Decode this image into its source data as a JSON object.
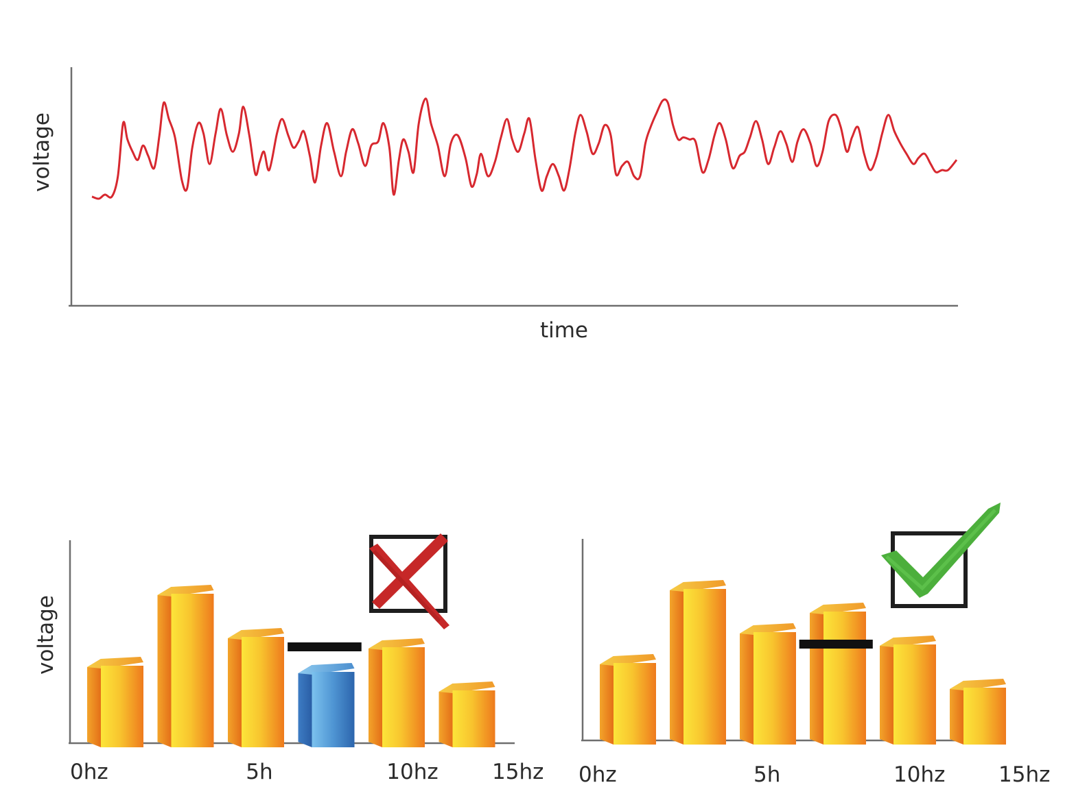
{
  "chart_data": [
    {
      "type": "line",
      "xlabel": "time",
      "ylabel": "voltage",
      "grid": false,
      "y_range": [
        0,
        100
      ],
      "x_range": [
        0,
        100
      ],
      "series": [
        {
          "color": "#d7282f",
          "points": [
            [
              0,
              42
            ],
            [
              0.8,
              41
            ],
            [
              1.5,
              43
            ],
            [
              2.3,
              42
            ],
            [
              3,
              52
            ],
            [
              3.6,
              78
            ],
            [
              4.1,
              70
            ],
            [
              4.7,
              64
            ],
            [
              5.3,
              60
            ],
            [
              5.9,
              67
            ],
            [
              6.5,
              62
            ],
            [
              7.2,
              56
            ],
            [
              7.8,
              72
            ],
            [
              8.3,
              88
            ],
            [
              8.9,
              80
            ],
            [
              9.6,
              71
            ],
            [
              10.4,
              50
            ],
            [
              11,
              46
            ],
            [
              11.6,
              66
            ],
            [
              12.3,
              78
            ],
            [
              12.9,
              73
            ],
            [
              13.6,
              58
            ],
            [
              14.3,
              73
            ],
            [
              14.9,
              85
            ],
            [
              15.6,
              72
            ],
            [
              16.3,
              64
            ],
            [
              17,
              73
            ],
            [
              17.5,
              86
            ],
            [
              18.2,
              72
            ],
            [
              18.9,
              53
            ],
            [
              19.4,
              59
            ],
            [
              19.9,
              64
            ],
            [
              20.5,
              55
            ],
            [
              21.4,
              73
            ],
            [
              22,
              80
            ],
            [
              22.7,
              72
            ],
            [
              23.3,
              66
            ],
            [
              23.9,
              69
            ],
            [
              24.5,
              74
            ],
            [
              25.2,
              62
            ],
            [
              25.8,
              49
            ],
            [
              26.5,
              67
            ],
            [
              27.2,
              78
            ],
            [
              28,
              64
            ],
            [
              28.8,
              52
            ],
            [
              29.4,
              64
            ],
            [
              30.1,
              75
            ],
            [
              30.8,
              68
            ],
            [
              31.6,
              57
            ],
            [
              32.3,
              67
            ],
            [
              33.1,
              69
            ],
            [
              33.7,
              78
            ],
            [
              34.4,
              66
            ],
            [
              34.9,
              43
            ],
            [
              35.5,
              60
            ],
            [
              36,
              70
            ],
            [
              36.6,
              64
            ],
            [
              37.2,
              54
            ],
            [
              37.8,
              78
            ],
            [
              38.6,
              90
            ],
            [
              39.2,
              78
            ],
            [
              40,
              67
            ],
            [
              40.8,
              52
            ],
            [
              41.5,
              68
            ],
            [
              42.3,
              72
            ],
            [
              43.2,
              61
            ],
            [
              43.9,
              47
            ],
            [
              44.5,
              53
            ],
            [
              45,
              63
            ],
            [
              45.8,
              52
            ],
            [
              46.6,
              59
            ],
            [
              47.3,
              71
            ],
            [
              48,
              80
            ],
            [
              48.6,
              70
            ],
            [
              49.3,
              64
            ],
            [
              50,
              73
            ],
            [
              50.6,
              80
            ],
            [
              51.3,
              60
            ],
            [
              52,
              45
            ],
            [
              52.6,
              52
            ],
            [
              53.3,
              58
            ],
            [
              54,
              52
            ],
            [
              54.6,
              45
            ],
            [
              55.2,
              55
            ],
            [
              55.9,
              73
            ],
            [
              56.5,
              82
            ],
            [
              57.2,
              74
            ],
            [
              57.9,
              63
            ],
            [
              58.6,
              68
            ],
            [
              59.3,
              77
            ],
            [
              60,
              72
            ],
            [
              60.6,
              53
            ],
            [
              61.3,
              57
            ],
            [
              62,
              59
            ],
            [
              62.7,
              52
            ],
            [
              63.4,
              52
            ],
            [
              64,
              68
            ],
            [
              64.6,
              76
            ],
            [
              65.3,
              83
            ],
            [
              66,
              89
            ],
            [
              66.6,
              88
            ],
            [
              67.2,
              77
            ],
            [
              67.8,
              70
            ],
            [
              68.4,
              71
            ],
            [
              69.1,
              70
            ],
            [
              69.8,
              69
            ],
            [
              70.6,
              54
            ],
            [
              71.3,
              60
            ],
            [
              72,
              72
            ],
            [
              72.6,
              78
            ],
            [
              73.3,
              70
            ],
            [
              74.1,
              56
            ],
            [
              74.9,
              62
            ],
            [
              75.5,
              64
            ],
            [
              76.1,
              71
            ],
            [
              76.8,
              79
            ],
            [
              77.5,
              70
            ],
            [
              78.2,
              58
            ],
            [
              78.9,
              66
            ],
            [
              79.6,
              74
            ],
            [
              80.3,
              68
            ],
            [
              81,
              59
            ],
            [
              81.6,
              69
            ],
            [
              82.3,
              75
            ],
            [
              83.1,
              68
            ],
            [
              83.8,
              57
            ],
            [
              84.5,
              64
            ],
            [
              85.2,
              79
            ],
            [
              86,
              82
            ],
            [
              86.6,
              76
            ],
            [
              87.3,
              64
            ],
            [
              87.9,
              71
            ],
            [
              88.6,
              76
            ],
            [
              89.3,
              63
            ],
            [
              90,
              55
            ],
            [
              90.7,
              61
            ],
            [
              91.4,
              73
            ],
            [
              92.1,
              82
            ],
            [
              92.8,
              74
            ],
            [
              93.5,
              68
            ],
            [
              94.2,
              63
            ],
            [
              95,
              58
            ],
            [
              95.6,
              61
            ],
            [
              96.3,
              63
            ],
            [
              97,
              58
            ],
            [
              97.6,
              54
            ],
            [
              98.3,
              55
            ],
            [
              99,
              55
            ],
            [
              100,
              60
            ]
          ]
        }
      ]
    },
    {
      "type": "bar",
      "ylabel": "voltage",
      "xlabel": "",
      "tick_labels": [
        "0hz",
        "5h",
        "10hz",
        "15hz"
      ],
      "tick_positions": [
        0,
        2.5,
        4.5,
        6
      ],
      "ylim": [
        0,
        100
      ],
      "bars": [
        {
          "category": 0,
          "value": 41,
          "color": "orange"
        },
        {
          "category": 1,
          "value": 76,
          "color": "orange"
        },
        {
          "category": 2,
          "value": 55,
          "color": "orange"
        },
        {
          "category": 3,
          "value": 38,
          "color": "blue"
        },
        {
          "category": 4,
          "value": 50,
          "color": "orange"
        },
        {
          "category": 5,
          "value": 29,
          "color": "orange"
        }
      ],
      "threshold": 47,
      "mark": "x-cross",
      "mark_color": "#c62828"
    },
    {
      "type": "bar",
      "xlabel": "",
      "ylabel": "",
      "tick_labels": [
        "0hz",
        "5h",
        "10hz",
        "15hz"
      ],
      "tick_positions": [
        0,
        2.5,
        4.5,
        6
      ],
      "ylim": [
        0,
        100
      ],
      "bars": [
        {
          "category": 0,
          "value": 41,
          "color": "orange"
        },
        {
          "category": 1,
          "value": 77,
          "color": "orange"
        },
        {
          "category": 2,
          "value": 56,
          "color": "orange"
        },
        {
          "category": 3,
          "value": 66,
          "color": "orange"
        },
        {
          "category": 4,
          "value": 50,
          "color": "orange"
        },
        {
          "category": 5,
          "value": 29,
          "color": "orange"
        }
      ],
      "threshold": 47,
      "mark": "checkmark",
      "mark_color": "#4caf3c"
    }
  ],
  "colors": {
    "line": "#d7282f",
    "bar_orange_light": "#fbe23a",
    "bar_orange_dark": "#ef7a1e",
    "bar_blue_light": "#7fc3ee",
    "bar_blue_dark": "#2f6cb3",
    "axis": "#6e6e6e"
  }
}
